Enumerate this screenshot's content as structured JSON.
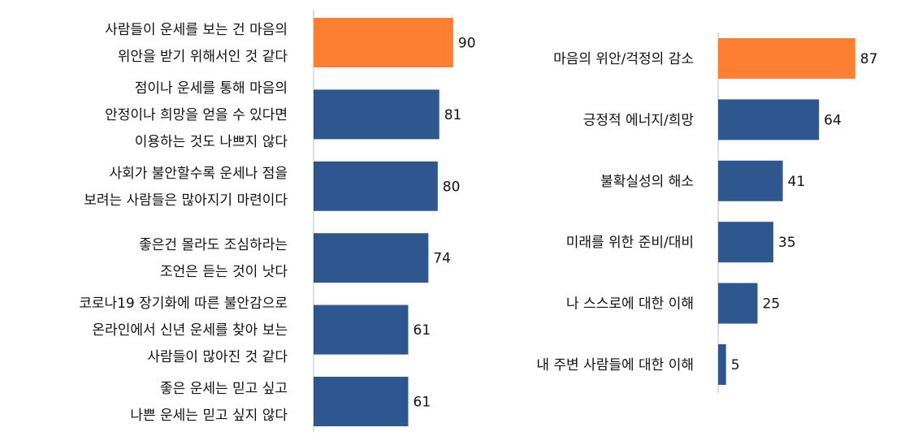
{
  "colors": {
    "highlight": "#FF7F32",
    "bar": "#2E5790",
    "axis": "#BFBFBF",
    "text": "#111111"
  },
  "chart_data": [
    {
      "type": "bar",
      "orientation": "horizontal",
      "title": "",
      "xlabel": "",
      "ylabel": "",
      "xlim": [
        0,
        100
      ],
      "categories": [
        [
          "사람들이 운세를 보는 건 마음의",
          "위안을 받기 위해서인 것 같다"
        ],
        [
          "점이나 운세를 통해 마음의",
          "안정이나 희망을 얻을 수 있다면",
          "이용하는 것도 나쁘지 않다"
        ],
        [
          "사회가 불안할수록 운세나 점을",
          "보려는 사람들은 많아지기 마련이다"
        ],
        [
          "좋은건 몰라도 조심하라는",
          "조언은 듣는 것이 낫다"
        ],
        [
          "코로나19 장기화에 따른 불안감으로",
          "온라인에서 신년 운세를 찾아 보는",
          "사람들이 많아진 것 같다"
        ],
        [
          "좋은 운세는 믿고 싶고",
          "나쁜 운세는 믿고 싶지 않다"
        ]
      ],
      "values": [
        90,
        81,
        80,
        74,
        61,
        61
      ],
      "highlight_index": 0,
      "grid": false
    },
    {
      "type": "bar",
      "orientation": "horizontal",
      "title": "",
      "xlabel": "",
      "ylabel": "",
      "xlim": [
        0,
        100
      ],
      "categories": [
        [
          "마음의 위안/걱정의 감소"
        ],
        [
          "긍정적 에너지/희망"
        ],
        [
          "불확실성의 해소"
        ],
        [
          "미래를 위한 준비/대비"
        ],
        [
          "나 스스로에 대한 이해"
        ],
        [
          "내 주변 사람들에 대한 이해"
        ]
      ],
      "values": [
        87,
        64,
        41,
        35,
        25,
        5
      ],
      "highlight_index": 0,
      "grid": false
    }
  ]
}
